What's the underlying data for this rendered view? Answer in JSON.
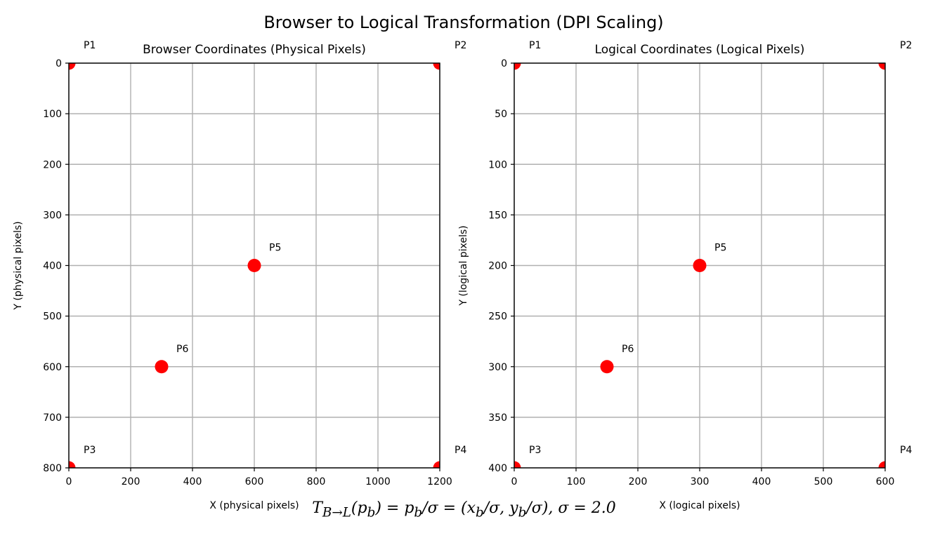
{
  "figure": {
    "title": "Browser to Logical Transformation (DPI Scaling)",
    "formula": "T_{B→L}(p_b) = p_b/σ = (x_b/σ, y_b/σ), σ = 2.0"
  },
  "chart_data": [
    {
      "type": "scatter",
      "title": "Browser Coordinates (Physical Pixels)",
      "xlabel": "X (physical pixels)",
      "ylabel": "Y (physical pixels)",
      "xlim": [
        0,
        1200
      ],
      "ylim": [
        800,
        0
      ],
      "y_inverted": true,
      "xticks": [
        0,
        200,
        400,
        600,
        800,
        1000,
        1200
      ],
      "yticks": [
        0,
        100,
        200,
        300,
        400,
        500,
        600,
        700,
        800
      ],
      "grid": true,
      "marker_color": "#ff0000",
      "points": [
        {
          "label": "P1",
          "x": 0,
          "y": 0
        },
        {
          "label": "P2",
          "x": 1200,
          "y": 0
        },
        {
          "label": "P3",
          "x": 0,
          "y": 800
        },
        {
          "label": "P4",
          "x": 1200,
          "y": 800
        },
        {
          "label": "P5",
          "x": 600,
          "y": 400
        },
        {
          "label": "P6",
          "x": 300,
          "y": 600
        }
      ]
    },
    {
      "type": "scatter",
      "title": "Logical Coordinates (Logical Pixels)",
      "xlabel": "X (logical pixels)",
      "ylabel": "Y (logical pixels)",
      "xlim": [
        0,
        600
      ],
      "ylim": [
        400,
        0
      ],
      "y_inverted": true,
      "xticks": [
        0,
        100,
        200,
        300,
        400,
        500,
        600
      ],
      "yticks": [
        0,
        50,
        100,
        150,
        200,
        250,
        300,
        350,
        400
      ],
      "grid": true,
      "marker_color": "#ff0000",
      "points": [
        {
          "label": "P1",
          "x": 0,
          "y": 0
        },
        {
          "label": "P2",
          "x": 600,
          "y": 0
        },
        {
          "label": "P3",
          "x": 0,
          "y": 400
        },
        {
          "label": "P4",
          "x": 600,
          "y": 400
        },
        {
          "label": "P5",
          "x": 300,
          "y": 200
        },
        {
          "label": "P6",
          "x": 150,
          "y": 300
        }
      ]
    }
  ]
}
